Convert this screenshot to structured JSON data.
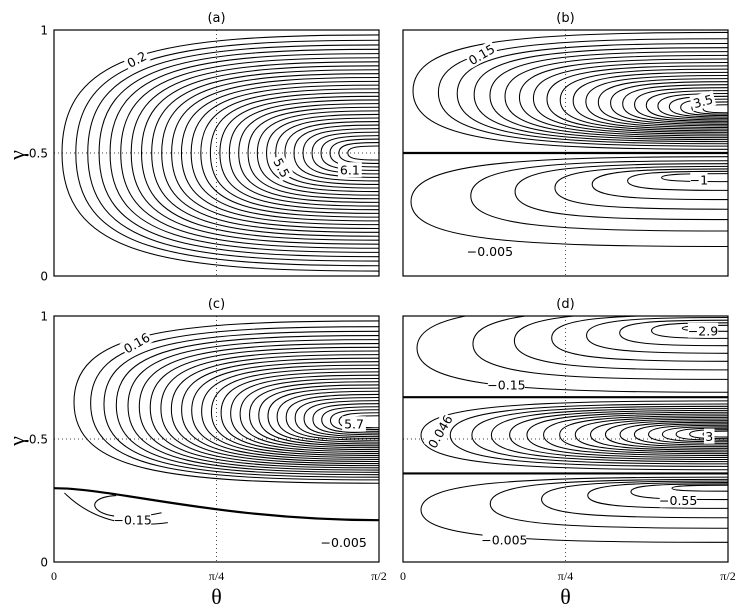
{
  "figure": {
    "x_axis_label": "θ",
    "y_axis_label": "γ",
    "x_ticks": [
      "0",
      "π/4",
      "π/2"
    ],
    "y_ticks": [
      "0",
      "0.5",
      "1"
    ]
  },
  "chart_data": [
    {
      "type": "contour",
      "title": "(a)",
      "x_range": [
        0,
        1.5708
      ],
      "y_range": [
        0,
        1
      ],
      "grid": true,
      "contour_labels": [
        "0.2",
        "5.5",
        "6.1"
      ],
      "separatrices": []
    },
    {
      "type": "contour",
      "title": "(b)",
      "x_range": [
        0,
        1.5708
      ],
      "y_range": [
        0,
        1
      ],
      "grid": true,
      "contour_labels": [
        "0.15",
        "3.5",
        "−1",
        "−0.005"
      ],
      "separatrices": [
        0.5
      ]
    },
    {
      "type": "contour",
      "title": "(c)",
      "x_range": [
        0,
        1.5708
      ],
      "y_range": [
        0,
        1
      ],
      "grid": true,
      "contour_labels": [
        "0.16",
        "5.7",
        "−0.15",
        "−0.005"
      ],
      "separatrices": [
        0.3
      ]
    },
    {
      "type": "contour",
      "title": "(d)",
      "x_range": [
        0,
        1.5708
      ],
      "y_range": [
        0,
        1
      ],
      "grid": true,
      "contour_labels": [
        "−2.9",
        "−0.15",
        "0.046",
        "3",
        "−0.55",
        "−0.005"
      ],
      "separatrices": [
        0.67,
        0.36
      ]
    }
  ]
}
